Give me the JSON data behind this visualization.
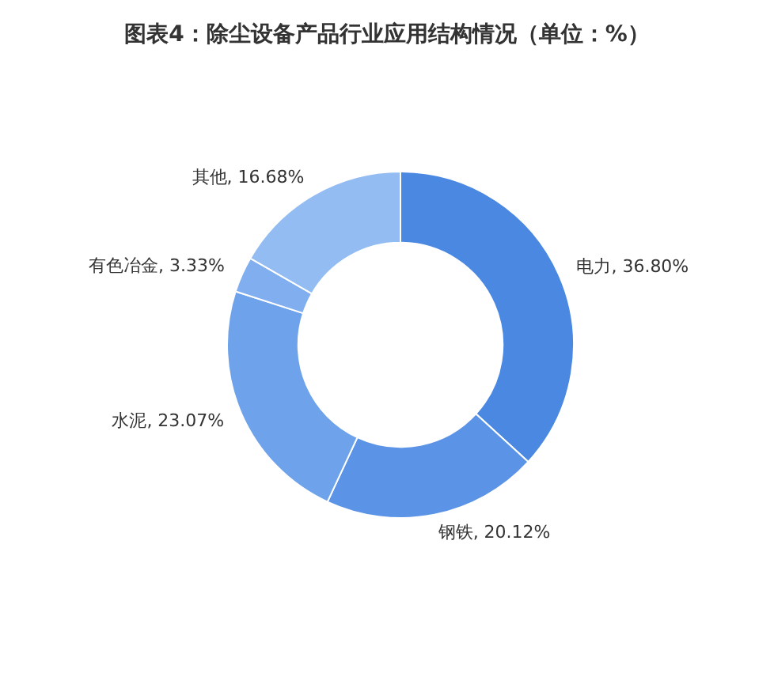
{
  "chart_data": {
    "type": "donut",
    "title": "图表4：除尘设备产品行业应用结构情况（单位：%）",
    "categories": [
      "电力",
      "钢铁",
      "水泥",
      "有色冶金",
      "其他"
    ],
    "values": [
      36.8,
      20.12,
      23.07,
      3.33,
      16.68
    ],
    "value_labels": [
      "36.80%",
      "20.12%",
      "23.07%",
      "3.33%",
      "16.68%"
    ],
    "colors": [
      "#4a88e2",
      "#5b94e6",
      "#6ea2ea",
      "#80aeee",
      "#93bcf2"
    ],
    "legend": false
  }
}
